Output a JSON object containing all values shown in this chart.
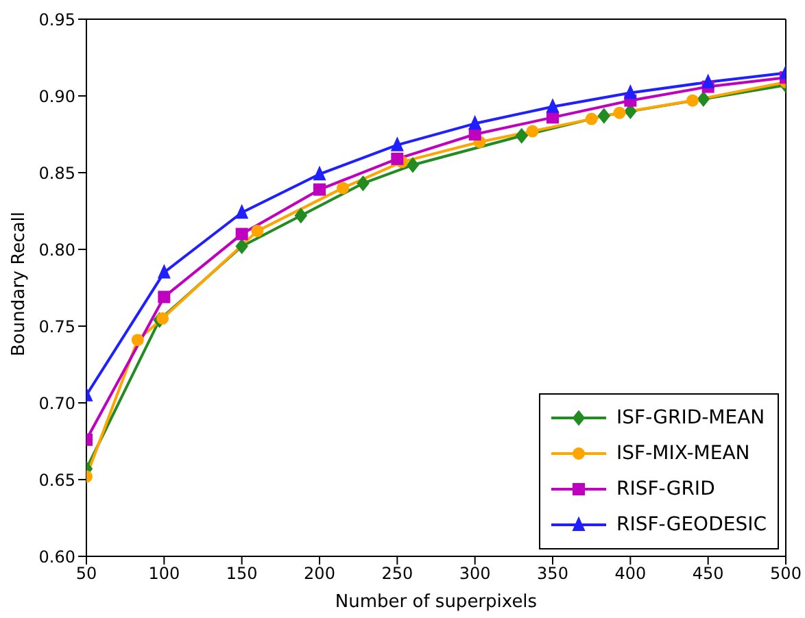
{
  "chart_data": {
    "type": "line",
    "xlabel": "Number of superpixels",
    "ylabel": "Boundary Recall",
    "xlim": [
      50,
      500
    ],
    "xticks": [
      50,
      100,
      150,
      200,
      250,
      300,
      350,
      400,
      450,
      500
    ],
    "ylim": [
      0.6,
      0.95
    ],
    "yticks": [
      {
        "value": 0.6,
        "label": "0.60"
      },
      {
        "value": 0.65,
        "label": "0.65"
      },
      {
        "value": 0.7,
        "label": "0.70"
      },
      {
        "value": 0.75,
        "label": "0.75"
      },
      {
        "value": 0.8,
        "label": "0.80"
      },
      {
        "value": 0.85,
        "label": "0.85"
      },
      {
        "value": 0.9,
        "label": "0.90"
      },
      {
        "value": 0.95,
        "label": "0.95"
      }
    ],
    "legend": "bottom right",
    "line_style": "solid",
    "series": [
      {
        "name": "ISF-GRID-MEAN",
        "color": "#228b22",
        "marker": "diamond",
        "x": [
          50,
          97,
          150,
          188,
          228,
          260,
          330,
          383,
          400,
          447,
          500
        ],
        "values": [
          0.657,
          0.754,
          0.802,
          0.822,
          0.843,
          0.855,
          0.874,
          0.887,
          0.89,
          0.898,
          0.907
        ]
      },
      {
        "name": "ISF-MIX-MEAN",
        "color": "#ffa500",
        "marker": "circle",
        "x": [
          50,
          83,
          99,
          160,
          215,
          253,
          303,
          337,
          375,
          393,
          440,
          500
        ],
        "values": [
          0.652,
          0.741,
          0.755,
          0.812,
          0.84,
          0.857,
          0.87,
          0.877,
          0.885,
          0.889,
          0.897,
          0.909
        ]
      },
      {
        "name": "RISF-GRID",
        "color": "#bf00bf",
        "marker": "square",
        "x": [
          50,
          100,
          150,
          200,
          250,
          300,
          350,
          400,
          450,
          500
        ],
        "values": [
          0.676,
          0.769,
          0.81,
          0.839,
          0.859,
          0.875,
          0.886,
          0.897,
          0.906,
          0.912
        ]
      },
      {
        "name": "RISF-GEODESIC",
        "color": "#2020ff",
        "marker": "triangle",
        "x": [
          50,
          100,
          150,
          200,
          250,
          300,
          350,
          400,
          450,
          500
        ],
        "values": [
          0.705,
          0.785,
          0.824,
          0.849,
          0.868,
          0.882,
          0.893,
          0.902,
          0.909,
          0.915
        ]
      }
    ]
  }
}
